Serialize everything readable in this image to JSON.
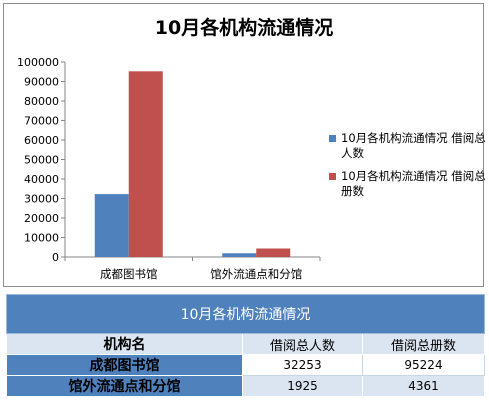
{
  "chart_data": {
    "type": "bar",
    "title": "10月各机构流通情况",
    "categories": [
      "成都图书馆",
      "馆外流通点和分馆"
    ],
    "series": [
      {
        "name": "10月各机构流通情况 借阅总人数",
        "values": [
          32253,
          1925
        ],
        "color": "#4f81bd"
      },
      {
        "name": "10月各机构流通情况 借阅总册数",
        "values": [
          95224,
          4361
        ],
        "color": "#c0504d"
      }
    ],
    "ylim": [
      0,
      100000
    ],
    "yticks": [
      "0",
      "10000",
      "20000",
      "30000",
      "40000",
      "50000",
      "60000",
      "70000",
      "80000",
      "90000",
      "100000"
    ],
    "legend_position": "right",
    "grid": false
  },
  "table": {
    "title": "10月各机构流通情况",
    "headers": [
      "机构名",
      "借阅总人数",
      "借阅总册数"
    ],
    "rows": [
      [
        "成都图书馆",
        "32253",
        "95224"
      ],
      [
        "馆外流通点和分馆",
        "1925",
        "4361"
      ]
    ]
  }
}
